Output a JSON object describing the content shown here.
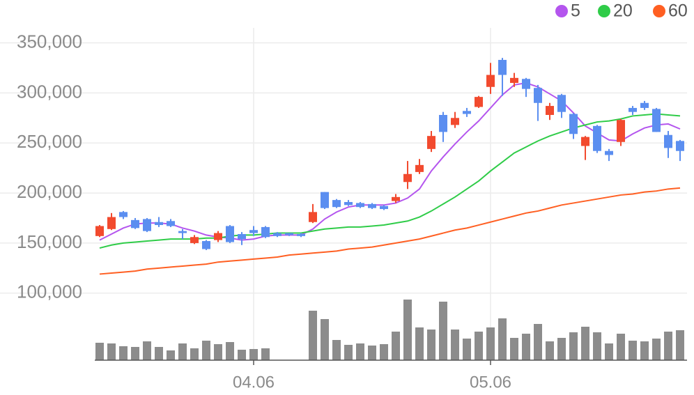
{
  "chart_data": {
    "type": "candlestick",
    "categories": [
      null,
      null,
      null,
      null,
      null,
      null,
      null,
      null,
      null,
      null,
      null,
      null,
      null,
      "04.06",
      null,
      null,
      null,
      null,
      null,
      null,
      null,
      null,
      null,
      null,
      null,
      null,
      null,
      null,
      null,
      null,
      null,
      null,
      null,
      "05.06",
      null,
      null,
      null,
      null,
      null,
      null,
      null,
      null,
      null,
      null,
      null,
      null,
      null,
      null,
      null,
      null
    ],
    "open": [
      157000,
      164000,
      181000,
      173000,
      174000,
      171000,
      172000,
      162000,
      150000,
      152000,
      153000,
      167000,
      159000,
      163000,
      166000,
      160000,
      160000,
      159000,
      171000,
      201000,
      193000,
      191000,
      190000,
      189000,
      187000,
      192000,
      211000,
      221000,
      244000,
      278000,
      268000,
      282000,
      286000,
      306000,
      333000,
      310000,
      314000,
      305000,
      278000,
      298000,
      279000,
      247000,
      267000,
      242000,
      251000,
      285000,
      290000,
      284000,
      258000,
      252000
    ],
    "high": [
      168000,
      180000,
      182000,
      175000,
      175000,
      176000,
      174000,
      164000,
      158000,
      153000,
      162000,
      168000,
      161000,
      167000,
      167000,
      161000,
      160000,
      160000,
      189000,
      201000,
      194000,
      193000,
      191000,
      190000,
      188000,
      199000,
      232000,
      234000,
      262000,
      281000,
      281000,
      285000,
      297000,
      330000,
      335000,
      320000,
      315000,
      308000,
      290000,
      299000,
      280000,
      257000,
      268000,
      244000,
      274000,
      287000,
      292000,
      285000,
      262000,
      253000
    ],
    "low": [
      156000,
      163000,
      174000,
      164000,
      161000,
      166000,
      166000,
      154000,
      149000,
      143000,
      151000,
      150000,
      148000,
      157000,
      155000,
      156000,
      157000,
      156000,
      170000,
      184000,
      185000,
      187000,
      185000,
      184000,
      183000,
      190000,
      204000,
      219000,
      241000,
      251000,
      265000,
      276000,
      285000,
      299000,
      297000,
      306000,
      296000,
      272000,
      273000,
      275000,
      254000,
      233000,
      240000,
      232000,
      247000,
      278000,
      283000,
      261000,
      235000,
      232000
    ],
    "close": [
      167000,
      176000,
      176000,
      165000,
      162000,
      168000,
      167000,
      160000,
      156000,
      144000,
      160000,
      151000,
      154000,
      160000,
      156000,
      157000,
      158000,
      157000,
      181000,
      185000,
      186000,
      188000,
      186000,
      185000,
      184000,
      196000,
      219000,
      228000,
      257000,
      261000,
      275000,
      279000,
      296000,
      318000,
      318000,
      315000,
      304000,
      290000,
      287000,
      281000,
      259000,
      256000,
      242000,
      238000,
      273000,
      281000,
      285000,
      261000,
      245000,
      242000
    ],
    "volumes": [
      25,
      24,
      20,
      19,
      27,
      19,
      14,
      24,
      17,
      28,
      23,
      26,
      15,
      16,
      17,
      null,
      null,
      null,
      71,
      59,
      29,
      22,
      24,
      21,
      23,
      41,
      87,
      47,
      44,
      84,
      44,
      31,
      41,
      47,
      60,
      32,
      38,
      52,
      27,
      32,
      40,
      48,
      40,
      24,
      38,
      28,
      27,
      31,
      41,
      43
    ],
    "vlim": [
      0,
      100
    ],
    "series": [
      {
        "name": "5",
        "color": "#b455ee",
        "values": [
          153000,
          159000,
          165000,
          169000,
          170000,
          170000,
          169000,
          165000,
          162000,
          158000,
          156000,
          155000,
          153000,
          154000,
          157000,
          158000,
          158000,
          158000,
          164000,
          174000,
          181000,
          186000,
          188000,
          188000,
          188000,
          190000,
          195000,
          204000,
          222000,
          236000,
          249000,
          261000,
          272000,
          285000,
          298000,
          308000,
          310000,
          306000,
          299000,
          292000,
          280000,
          267000,
          260000,
          253000,
          252000,
          259000,
          265000,
          268000,
          269000,
          264000
        ]
      },
      {
        "name": "20",
        "color": "#2fcc48",
        "values": [
          145000,
          148000,
          150000,
          151000,
          152000,
          153000,
          154000,
          154000,
          154000,
          155000,
          155000,
          157000,
          158000,
          158000,
          159000,
          160000,
          160000,
          160000,
          162000,
          164000,
          165000,
          166000,
          166000,
          167000,
          168000,
          170000,
          172000,
          176000,
          182000,
          189000,
          196000,
          204000,
          212000,
          222000,
          231000,
          240000,
          246000,
          252000,
          257000,
          261000,
          265000,
          268000,
          271000,
          272000,
          274000,
          277000,
          278000,
          279000,
          278000,
          277000
        ]
      },
      {
        "name": "60",
        "color": "#ff5f22",
        "values": [
          119000,
          120000,
          121000,
          122000,
          124000,
          125000,
          126000,
          127000,
          128000,
          129000,
          131000,
          132000,
          133000,
          134000,
          135000,
          136000,
          138000,
          139000,
          140000,
          141000,
          142000,
          144000,
          145000,
          146000,
          148000,
          150000,
          152000,
          154000,
          157000,
          160000,
          163000,
          165000,
          168000,
          171000,
          174000,
          177000,
          180000,
          182000,
          185000,
          188000,
          190000,
          192000,
          194000,
          196000,
          198000,
          199000,
          201000,
          202000,
          204000,
          205000
        ]
      }
    ],
    "up_color": "#f24a2e",
    "down_color": "#5b8ef0",
    "volume_color": "#8c8c8c",
    "ylim": [
      33000,
      365000
    ],
    "yticks": [
      {
        "value": 100000,
        "label": "100,000"
      },
      {
        "value": 150000,
        "label": "150,000"
      },
      {
        "value": 200000,
        "label": "200,000"
      },
      {
        "value": 250000,
        "label": "250,000"
      },
      {
        "value": 300000,
        "label": "300,000"
      },
      {
        "value": 350000,
        "label": "350,000"
      }
    ],
    "grid": true
  }
}
